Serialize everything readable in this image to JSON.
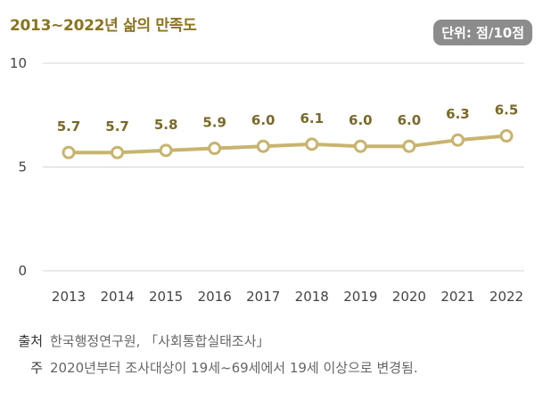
{
  "header": {
    "title": "2013~2022년 삶의 만족도",
    "unit": "단위: 점/10점"
  },
  "chart_data": {
    "type": "line",
    "title": "2013~2022년 삶의 만족도",
    "xlabel": "",
    "ylabel": "",
    "categories": [
      "2013",
      "2014",
      "2015",
      "2016",
      "2017",
      "2018",
      "2019",
      "2020",
      "2021",
      "2022"
    ],
    "series": [
      {
        "values": [
          5.7,
          5.7,
          5.8,
          5.9,
          6.0,
          6.1,
          6.0,
          6.0,
          6.3,
          6.5
        ]
      }
    ],
    "value_labels": [
      "5.7",
      "5.7",
      "5.8",
      "5.9",
      "6.0",
      "6.1",
      "6.0",
      "6.0",
      "6.3",
      "6.5"
    ],
    "ylim": [
      0,
      10
    ],
    "yticks": [
      "0",
      "5",
      "10"
    ],
    "grid": true,
    "line_color": "#c8b46e",
    "marker_fill": "#ffffff",
    "label_color": "#7a6a2a"
  },
  "footnotes": {
    "source_key": "출처",
    "source_text": "한국행정연구원, 「사회통합실태조사」",
    "note_key": "주",
    "note_text": "2020년부터 조사대상이 19세~69세에서 19세 이상으로 변경됨."
  }
}
